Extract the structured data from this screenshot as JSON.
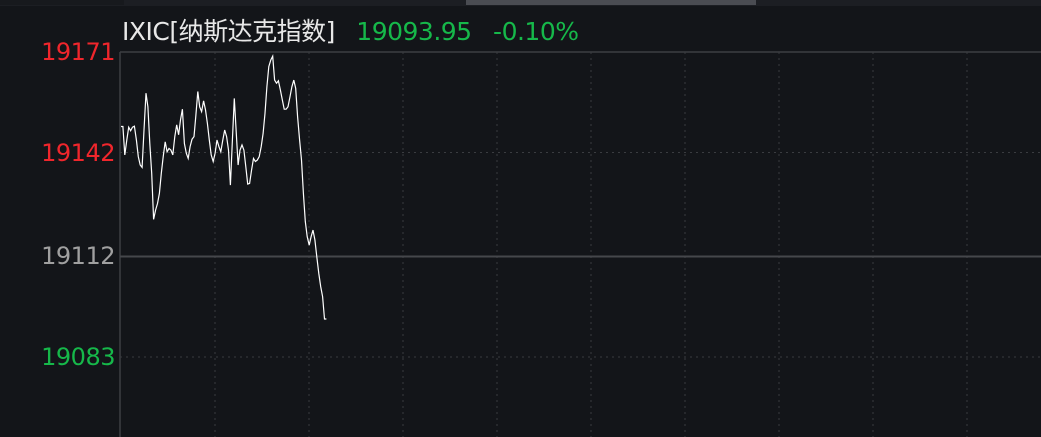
{
  "header": {
    "symbol": "IXIC[纳斯达克指数]",
    "price": "19093.95",
    "change_pct": "-0.10%"
  },
  "colors": {
    "background": "#131519",
    "up": "#f0262c",
    "down": "#16b84a",
    "neutral": "#a0a0a0",
    "line": "#ffffff",
    "grid": "#3a3c40"
  },
  "chart_data": {
    "type": "line",
    "title": "",
    "ylim": [
      19083,
      19171
    ],
    "reference_value": 19112,
    "y_ticks": [
      {
        "label": "19171",
        "value": 19171,
        "tone": "up"
      },
      {
        "label": "19142",
        "value": 19142,
        "tone": "up"
      },
      {
        "label": "19112",
        "value": 19112,
        "tone": "neutral"
      },
      {
        "label": "19083",
        "value": 19083,
        "tone": "down"
      }
    ],
    "grid": true,
    "values": [
      19149.5,
      19149.5,
      19141.3,
      19145.6,
      19149.3,
      19148.3,
      19149.3,
      19149.6,
      19145.6,
      19140.8,
      19138.4,
      19137.7,
      19148.5,
      19159.1,
      19155.2,
      19144.6,
      19136.0,
      19122.7,
      19125.4,
      19127.3,
      19130.2,
      19136.0,
      19140.8,
      19145.1,
      19142.2,
      19143.2,
      19142.7,
      19141.3,
      19146.6,
      19150.0,
      19147.1,
      19151.4,
      19154.5,
      19144.6,
      19141.8,
      19140.3,
      19143.7,
      19145.8,
      19146.6,
      19152.8,
      19159.6,
      19155.2,
      19153.8,
      19156.9,
      19154.3,
      19150.4,
      19145.6,
      19141.3,
      19139.4,
      19141.8,
      19145.6,
      19143.7,
      19142.2,
      19145.6,
      19148.5,
      19146.6,
      19142.7,
      19132.6,
      19145.6,
      19157.6,
      19148.0,
      19138.4,
      19142.7,
      19144.2,
      19142.7,
      19137.9,
      19132.9,
      19133.1,
      19137.0,
      19140.3,
      19139.4,
      19139.8,
      19140.8,
      19143.7,
      19147.5,
      19153.3,
      19161.0,
      19166.8,
      19168.7,
      19169.8,
      19162.9,
      19162.0,
      19162.7,
      19160.0,
      19157.2,
      19154.5,
      19154.5,
      19155.2,
      19158.1,
      19161.0,
      19162.9,
      19160.5,
      19152.3,
      19145.6,
      19139.8,
      19130.2,
      19122.1,
      19117.7,
      19115.3,
      19117.7,
      19119.6,
      19116.8,
      19111.9,
      19107.1,
      19103.3,
      19100.4,
      19093.95,
      19093.95
    ]
  }
}
